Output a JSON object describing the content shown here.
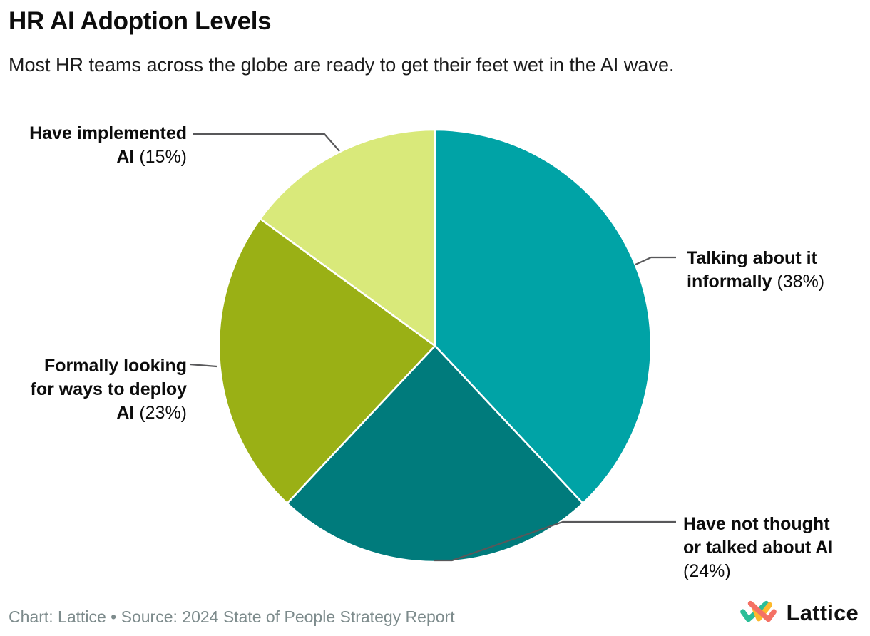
{
  "header": {
    "title": "HR AI Adoption Levels",
    "subtitle": "Most HR teams across the globe are ready to get their feet wet in the AI wave."
  },
  "chart_data": {
    "type": "pie",
    "title": "HR AI Adoption Levels",
    "units": "percent of HR teams",
    "categories": [
      "Talking about it informally",
      "Have not thought or talked about AI",
      "Formally looking for ways to deploy AI",
      "Have implemented AI"
    ],
    "values": [
      38,
      24,
      23,
      15
    ],
    "slice_colors": [
      "#00a3a6",
      "#007b7c",
      "#9ab015",
      "#d9e97a"
    ],
    "start_angle_deg": 0,
    "direction": "clockwise",
    "legend_position": "callout-labels",
    "grid": false
  },
  "callouts": {
    "talking": {
      "line1_bold": "Talking about it",
      "line2_bold": "informally",
      "pct": "(38%)"
    },
    "not_thought": {
      "line1_bold": "Have not thought",
      "line2_bold": "or talked about AI",
      "pct": "(24%)"
    },
    "formally": {
      "line1_bold": "Formally looking",
      "line2_bold": "for ways to deploy",
      "line3_bold": "AI",
      "pct": "(23%)"
    },
    "implemented": {
      "line1_bold": "Have implemented",
      "line2_bold": "AI",
      "pct": "(15%)"
    }
  },
  "footer": {
    "credit": "Chart: Lattice • Source: 2024 State of People Strategy Report",
    "brand": "Lattice"
  },
  "theme": {
    "background": "#ffffff",
    "text": "#0c0c0c",
    "muted_text": "#7d8b8c",
    "leader_line": "#58585a",
    "slice_divider": "#ffffff",
    "logo_coral": "#f47165",
    "logo_yellow": "#fdb92c",
    "logo_teal": "#2abe98"
  }
}
